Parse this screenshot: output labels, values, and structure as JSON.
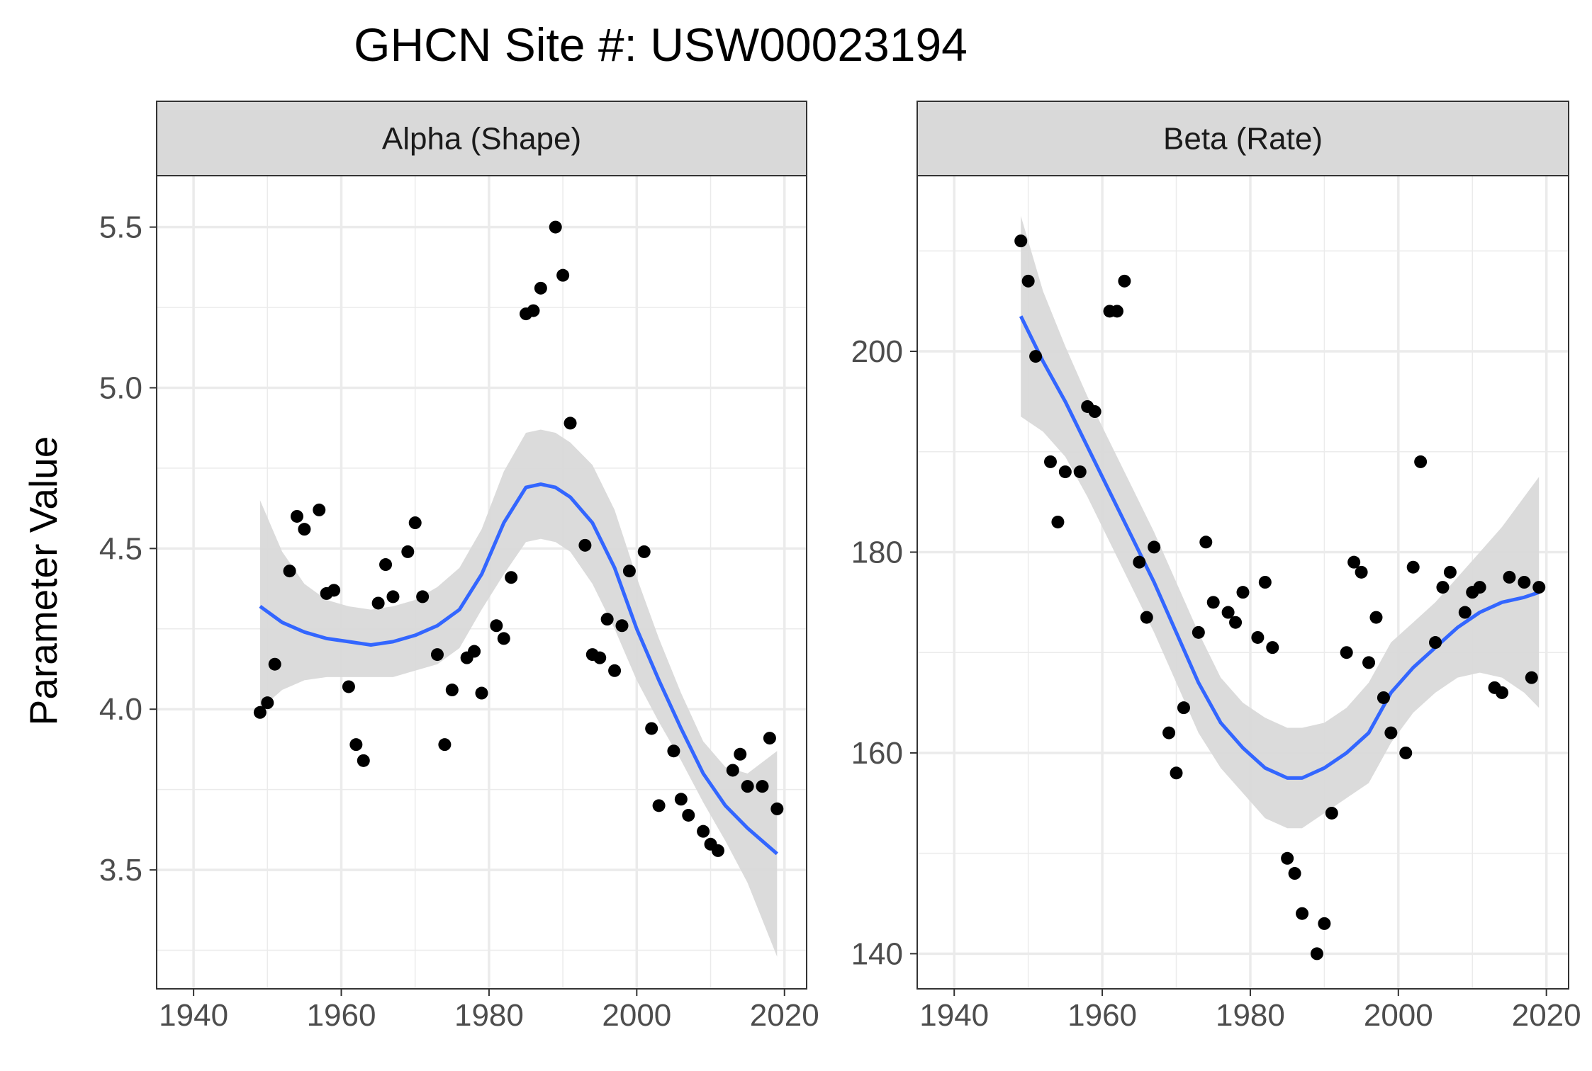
{
  "chart_data": {
    "type": "scatter",
    "title": "GHCN Site #: USW00023194",
    "ylabel": "Parameter Value",
    "xlabel": "",
    "grid": true,
    "colors": {
      "points": "#000000",
      "smooth": "#3366ff",
      "ribbon": "#d9d9d9",
      "strip": "#d9d9d9",
      "grid_major": "#ebebeb",
      "panel_border": "#333333"
    },
    "panels": [
      {
        "strip": "Alpha (Shape)",
        "xlim": [
          1935,
          2023
        ],
        "ylim": [
          3.13,
          5.66
        ],
        "x_ticks": [
          1940,
          1960,
          1980,
          2000,
          2020
        ],
        "y_ticks": [
          3.5,
          4.0,
          4.5,
          5.0,
          5.5
        ],
        "y_tick_labels": [
          "3.5",
          "4.0",
          "4.5",
          "5.0",
          "5.5"
        ],
        "points": [
          [
            1949,
            3.99
          ],
          [
            1950,
            4.02
          ],
          [
            1951,
            4.14
          ],
          [
            1953,
            4.43
          ],
          [
            1954,
            4.6
          ],
          [
            1955,
            4.56
          ],
          [
            1957,
            4.62
          ],
          [
            1958,
            4.36
          ],
          [
            1959,
            4.37
          ],
          [
            1961,
            4.07
          ],
          [
            1962,
            3.89
          ],
          [
            1963,
            3.84
          ],
          [
            1965,
            4.33
          ],
          [
            1966,
            4.45
          ],
          [
            1967,
            4.35
          ],
          [
            1969,
            4.49
          ],
          [
            1970,
            4.58
          ],
          [
            1971,
            4.35
          ],
          [
            1973,
            4.17
          ],
          [
            1974,
            3.89
          ],
          [
            1975,
            4.06
          ],
          [
            1977,
            4.16
          ],
          [
            1978,
            4.18
          ],
          [
            1979,
            4.05
          ],
          [
            1981,
            4.26
          ],
          [
            1982,
            4.22
          ],
          [
            1983,
            4.41
          ],
          [
            1985,
            5.23
          ],
          [
            1986,
            5.24
          ],
          [
            1987,
            5.31
          ],
          [
            1989,
            5.5
          ],
          [
            1990,
            5.35
          ],
          [
            1991,
            4.89
          ],
          [
            1993,
            4.51
          ],
          [
            1994,
            4.17
          ],
          [
            1995,
            4.16
          ],
          [
            1996,
            4.28
          ],
          [
            1997,
            4.12
          ],
          [
            1998,
            4.26
          ],
          [
            1999,
            4.43
          ],
          [
            2001,
            4.49
          ],
          [
            2002,
            3.94
          ],
          [
            2003,
            3.7
          ],
          [
            2005,
            3.87
          ],
          [
            2006,
            3.72
          ],
          [
            2007,
            3.67
          ],
          [
            2009,
            3.62
          ],
          [
            2010,
            3.58
          ],
          [
            2011,
            3.56
          ],
          [
            2013,
            3.81
          ],
          [
            2014,
            3.86
          ],
          [
            2015,
            3.76
          ],
          [
            2017,
            3.76
          ],
          [
            2018,
            3.91
          ],
          [
            2019,
            3.69
          ]
        ],
        "smooth": {
          "x": [
            1949,
            1952,
            1955,
            1958,
            1961,
            1964,
            1967,
            1970,
            1973,
            1976,
            1979,
            1982,
            1985,
            1987,
            1989,
            1991,
            1994,
            1997,
            2000,
            2003,
            2006,
            2009,
            2012,
            2015,
            2019
          ],
          "y": [
            4.32,
            4.27,
            4.24,
            4.22,
            4.21,
            4.2,
            4.21,
            4.23,
            4.26,
            4.31,
            4.42,
            4.58,
            4.69,
            4.7,
            4.69,
            4.66,
            4.58,
            4.44,
            4.25,
            4.09,
            3.94,
            3.8,
            3.7,
            3.63,
            3.55
          ]
        },
        "ribbon": {
          "x": [
            1949,
            1952,
            1955,
            1958,
            1961,
            1964,
            1967,
            1970,
            1973,
            1976,
            1979,
            1982,
            1985,
            1987,
            1989,
            1991,
            1994,
            1997,
            2000,
            2003,
            2006,
            2009,
            2012,
            2015,
            2019
          ],
          "lower": [
            4.0,
            4.06,
            4.09,
            4.1,
            4.1,
            4.1,
            4.1,
            4.12,
            4.14,
            4.19,
            4.31,
            4.42,
            4.52,
            4.53,
            4.52,
            4.49,
            4.39,
            4.25,
            4.09,
            3.96,
            3.84,
            3.71,
            3.59,
            3.46,
            3.23
          ],
          "upper": [
            4.65,
            4.49,
            4.39,
            4.34,
            4.32,
            4.31,
            4.32,
            4.34,
            4.38,
            4.44,
            4.56,
            4.74,
            4.86,
            4.87,
            4.86,
            4.83,
            4.76,
            4.62,
            4.41,
            4.22,
            4.05,
            3.9,
            3.82,
            3.8,
            3.87
          ]
        }
      },
      {
        "strip": "Beta (Rate)",
        "xlim": [
          1935,
          2023
        ],
        "ylim": [
          136.5,
          217.5
        ],
        "x_ticks": [
          1940,
          1960,
          1980,
          2000,
          2020
        ],
        "y_ticks": [
          140,
          160,
          180,
          200
        ],
        "y_tick_labels": [
          "140",
          "160",
          "180",
          "200"
        ],
        "points": [
          [
            1949,
            211
          ],
          [
            1950,
            207
          ],
          [
            1951,
            199.5
          ],
          [
            1953,
            189
          ],
          [
            1954,
            183
          ],
          [
            1955,
            188
          ],
          [
            1957,
            188
          ],
          [
            1958,
            194.5
          ],
          [
            1959,
            194
          ],
          [
            1961,
            204
          ],
          [
            1962,
            204
          ],
          [
            1963,
            207
          ],
          [
            1965,
            179
          ],
          [
            1966,
            173.5
          ],
          [
            1967,
            180.5
          ],
          [
            1969,
            162
          ],
          [
            1970,
            158
          ],
          [
            1971,
            164.5
          ],
          [
            1973,
            172
          ],
          [
            1974,
            181
          ],
          [
            1975,
            175
          ],
          [
            1977,
            174
          ],
          [
            1978,
            173
          ],
          [
            1979,
            176
          ],
          [
            1981,
            171.5
          ],
          [
            1982,
            177
          ],
          [
            1983,
            170.5
          ],
          [
            1985,
            149.5
          ],
          [
            1986,
            148
          ],
          [
            1987,
            144
          ],
          [
            1989,
            140
          ],
          [
            1990,
            143
          ],
          [
            1991,
            154
          ],
          [
            1993,
            170
          ],
          [
            1994,
            179
          ],
          [
            1995,
            178
          ],
          [
            1996,
            169
          ],
          [
            1997,
            173.5
          ],
          [
            1998,
            165.5
          ],
          [
            1999,
            162
          ],
          [
            2001,
            160
          ],
          [
            2002,
            178.5
          ],
          [
            2003,
            189
          ],
          [
            2005,
            171
          ],
          [
            2006,
            176.5
          ],
          [
            2007,
            178
          ],
          [
            2009,
            174
          ],
          [
            2010,
            176
          ],
          [
            2011,
            176.5
          ],
          [
            2013,
            166.5
          ],
          [
            2014,
            166
          ],
          [
            2015,
            177.5
          ],
          [
            2017,
            177
          ],
          [
            2018,
            167.5
          ],
          [
            2019,
            176.5
          ]
        ],
        "smooth": {
          "x": [
            1949,
            1952,
            1955,
            1958,
            1961,
            1964,
            1967,
            1970,
            1973,
            1976,
            1979,
            1982,
            1985,
            1987,
            1990,
            1993,
            1996,
            1999,
            2002,
            2005,
            2008,
            2011,
            2014,
            2017,
            2019
          ],
          "y": [
            203.5,
            199,
            195,
            190.5,
            186,
            181.5,
            177,
            172,
            167,
            163,
            160.5,
            158.5,
            157.5,
            157.5,
            158.5,
            160,
            162,
            166,
            168.5,
            170.5,
            172.5,
            174,
            175,
            175.5,
            176
          ]
        },
        "ribbon": {
          "x": [
            1949,
            1952,
            1955,
            1958,
            1961,
            1964,
            1967,
            1970,
            1973,
            1976,
            1979,
            1982,
            1985,
            1987,
            1990,
            1993,
            1996,
            1999,
            2002,
            2005,
            2008,
            2011,
            2014,
            2017,
            2019
          ],
          "lower": [
            193.5,
            192,
            189.5,
            185.5,
            181,
            176.5,
            172,
            167,
            162,
            158.5,
            156,
            153.5,
            152.5,
            152.5,
            154,
            155.5,
            157,
            161,
            164,
            166,
            167.5,
            168,
            167.5,
            166,
            164.5
          ],
          "upper": [
            213.5,
            206,
            200.5,
            195.5,
            191,
            186.5,
            182,
            177,
            172,
            167.5,
            165,
            163.5,
            162.5,
            162.5,
            163,
            164.5,
            167,
            171,
            173,
            175,
            177.5,
            180,
            182.5,
            185.5,
            187.5
          ]
        }
      }
    ]
  }
}
